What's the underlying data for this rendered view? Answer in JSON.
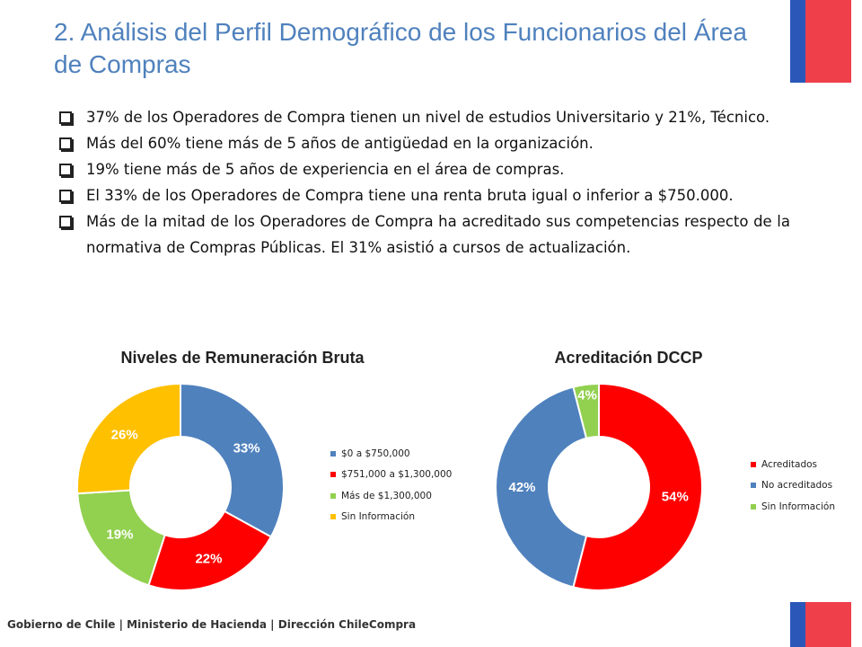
{
  "slide": {
    "title": "2. Análisis del Perfil Demográfico de los Funcionarios del Área de Compras",
    "bullets": [
      "37% de los Operadores de Compra tienen un nivel de estudios Universitario y 21%, Técnico.",
      "Más del 60% tiene más de 5 años de antigüedad en la organización.",
      "19% tiene más de 5 años de experiencia en el área de compras.",
      "El 33% de los Operadores de Compra tiene una renta bruta igual o inferior a $750.000.",
      "Más de la mitad de los Operadores de Compra ha acreditado sus competencias respecto de la normativa de Compras Públicas. El 31% asistió a cursos de actualización."
    ],
    "footer": "Gobierno de Chile | Ministerio de Hacienda | Dirección ChileCompra",
    "flag_colors": {
      "blue": "#2a57b8",
      "red": "#ee3f4b"
    }
  },
  "chart_data": [
    {
      "type": "pie",
      "donut": true,
      "title": "Niveles de Remuneración Bruta",
      "categories": [
        "$0 a $750,000",
        "$751,000 a $1,300,000",
        "Más de $1,300,000",
        "Sin Información"
      ],
      "values": [
        33,
        22,
        19,
        26
      ],
      "labels": [
        "33%",
        "22%",
        "19%",
        "26%"
      ],
      "colors": [
        "#4f81bd",
        "#ff0000",
        "#92d050",
        "#ffc000"
      ],
      "legend": "right"
    },
    {
      "type": "pie",
      "donut": true,
      "title": "Acreditación DCCP",
      "categories": [
        "Acreditados",
        "No acreditados",
        "Sin Información"
      ],
      "values": [
        54,
        42,
        4
      ],
      "labels": [
        "54%",
        "42%",
        "4%"
      ],
      "colors": [
        "#ff0000",
        "#4f81bd",
        "#92d050"
      ],
      "legend": "right"
    }
  ]
}
